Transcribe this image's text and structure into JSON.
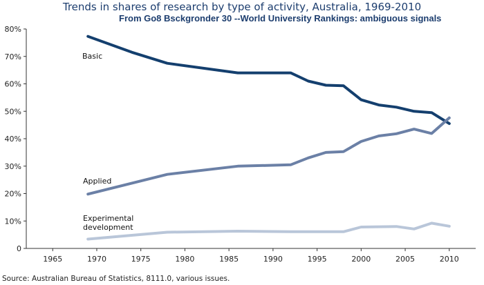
{
  "title": "Trends in shares of research by type of activity, Australia, 1969-2010",
  "subtitle": "From Go8 Bsckgronder 30 --World University Rankings: ambiguous signals",
  "source": "Source: Australian Bureau of Statistics, 8111.0, various issues.",
  "chart_data": {
    "type": "line",
    "title": "Trends in shares of research by type of activity, Australia, 1969-2010",
    "xlabel": "",
    "ylabel": "",
    "xlim": [
      1962,
      2013
    ],
    "ylim": [
      0,
      80
    ],
    "x_ticks": [
      1965,
      1970,
      1975,
      1980,
      1985,
      1990,
      1995,
      2000,
      2005,
      2010
    ],
    "y_ticks": [
      0,
      10,
      20,
      30,
      40,
      50,
      60,
      70,
      80
    ],
    "y_tick_labels": [
      "0",
      "10%",
      "20%",
      "30%",
      "40%",
      "50%",
      "60%",
      "70%",
      "80%"
    ],
    "grid": false,
    "legend": "inline labels",
    "series": [
      {
        "name": "Basic",
        "color": "#143f6e",
        "points": [
          [
            1969,
            77.3
          ],
          [
            1974,
            71.5
          ],
          [
            1978,
            67.5
          ],
          [
            1986,
            64
          ],
          [
            1992,
            64
          ],
          [
            1994,
            61
          ],
          [
            1996,
            59.5
          ],
          [
            1998,
            59.3
          ],
          [
            2000,
            54.2
          ],
          [
            2002,
            52.3
          ],
          [
            2004,
            51.5
          ],
          [
            2006,
            50
          ],
          [
            2008,
            49.5
          ],
          [
            2010,
            45.5
          ]
        ],
        "label_lines": [
          "Basic"
        ]
      },
      {
        "name": "Applied",
        "color": "#6b80a6",
        "points": [
          [
            1969,
            19.8
          ],
          [
            1978,
            27
          ],
          [
            1986,
            30
          ],
          [
            1992,
            30.5
          ],
          [
            1994,
            33
          ],
          [
            1996,
            35
          ],
          [
            1998,
            35.3
          ],
          [
            2000,
            39
          ],
          [
            2002,
            41
          ],
          [
            2004,
            41.8
          ],
          [
            2006,
            43.5
          ],
          [
            2008,
            41.9
          ],
          [
            2010,
            47.6
          ]
        ],
        "label_lines": [
          "Applied"
        ]
      },
      {
        "name": "Experimental development",
        "color": "#b9c6d9",
        "points": [
          [
            1969,
            3.4
          ],
          [
            1978,
            5.9
          ],
          [
            1986,
            6.3
          ],
          [
            1992,
            6.1
          ],
          [
            1998,
            6.1
          ],
          [
            2000,
            7.8
          ],
          [
            2004,
            8.0
          ],
          [
            2006,
            7.1
          ],
          [
            2008,
            9.2
          ],
          [
            2010,
            8.1
          ]
        ],
        "label_lines": [
          "Experimental",
          "development"
        ]
      }
    ]
  }
}
